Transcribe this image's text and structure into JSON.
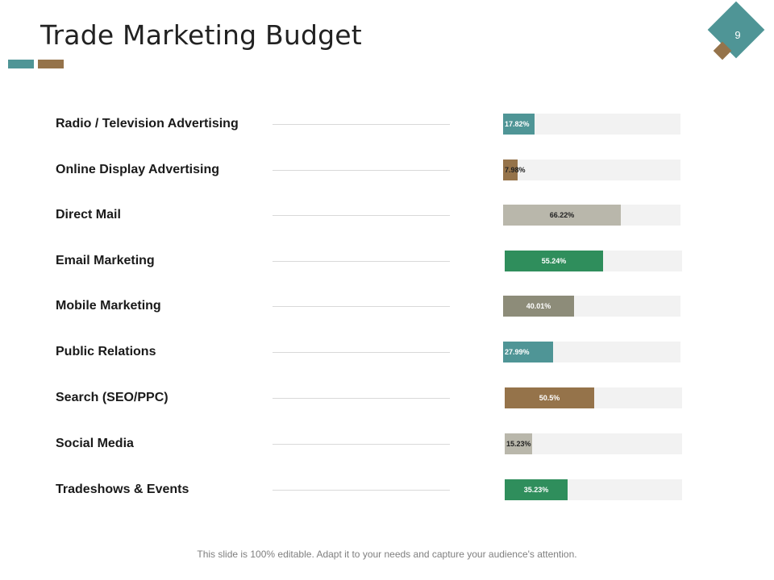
{
  "slide": {
    "title": "Trade Marketing Budget",
    "page_number": "9",
    "footer": "This slide is 100% editable. Adapt it to your needs and capture your audience's attention."
  },
  "colors": {
    "teal": "#4f9596",
    "brown": "#95734a",
    "beige": "#b9b7ab",
    "green": "#2f8e5c",
    "gray": "#8d8c79",
    "track": "#f2f2f2"
  },
  "chart_data": {
    "type": "bar",
    "orientation": "horizontal",
    "title": "Trade Marketing Budget",
    "xlim": [
      0,
      100
    ],
    "categories": [
      "Radio / Television  Advertising",
      "Online Display Advertising",
      "Direct Mail",
      "Email Marketing",
      "Mobile Marketing",
      "Public Relations",
      "Search (SEO/PPC)",
      "Social Media",
      "Tradeshows & Events"
    ],
    "values": [
      17.82,
      7.98,
      66.22,
      55.24,
      40.01,
      27.99,
      50.5,
      15.23,
      35.23
    ],
    "value_labels": [
      "17.82%",
      "7.98%",
      "66.22%",
      "55.24%",
      "40.01%",
      "27.99%",
      "50.5%",
      "15.23%",
      "35.23%"
    ],
    "bar_colors": [
      "#4f9596",
      "#95734a",
      "#b9b7ab",
      "#2f8e5c",
      "#8d8c79",
      "#4f9596",
      "#95734a",
      "#b9b7ab",
      "#2f8e5c"
    ],
    "label_colors": [
      "#ffffff",
      "#222222",
      "#222222",
      "#ffffff",
      "#ffffff",
      "#ffffff",
      "#ffffff",
      "#222222",
      "#ffffff"
    ],
    "label_positions": [
      "inside",
      "inside",
      "center",
      "center",
      "center",
      "inside",
      "center",
      "inside",
      "center"
    ]
  }
}
